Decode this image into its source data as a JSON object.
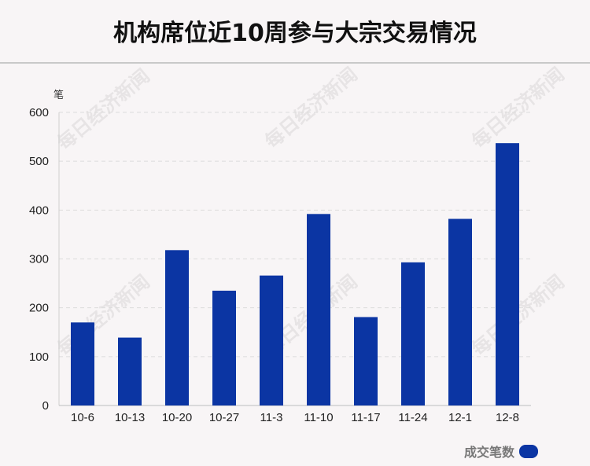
{
  "header": {
    "title": "机构席位近10周参与大宗交易情况"
  },
  "watermark": {
    "text": "每日经济新闻"
  },
  "chart_data": {
    "type": "bar",
    "title": "机构席位近10周参与大宗交易情况",
    "unit": "笔",
    "categories": [
      "10-6",
      "10-13",
      "10-20",
      "10-27",
      "11-3",
      "11-10",
      "11-17",
      "11-24",
      "12-1",
      "12-8"
    ],
    "series": [
      {
        "name": "成交笔数",
        "values": [
          170,
          139,
          318,
          235,
          266,
          392,
          181,
          293,
          382,
          537
        ]
      }
    ],
    "ylim": [
      0,
      600
    ],
    "yticks": [
      "0",
      "100",
      "200",
      "300",
      "400",
      "500",
      "600"
    ],
    "grid": true,
    "legend": "bottom-right",
    "color": "#0b35a3"
  }
}
